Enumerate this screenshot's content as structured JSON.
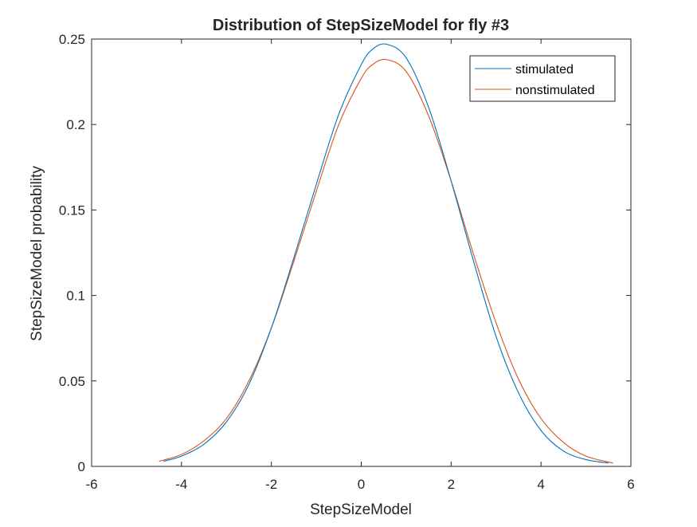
{
  "chart_data": {
    "type": "line",
    "title": "Distribution of StepSizeModel for fly #3",
    "xlabel": "StepSizeModel",
    "ylabel": "StepSizeModel probability",
    "xlim": [
      -6,
      6
    ],
    "ylim": [
      0,
      0.25
    ],
    "xticks": [
      -6,
      -4,
      -2,
      0,
      2,
      4,
      6
    ],
    "yticks": [
      0,
      0.05,
      0.1,
      0.15,
      0.2,
      0.25
    ],
    "xtick_labels": [
      "-6",
      "-4",
      "-2",
      "0",
      "2",
      "4",
      "6"
    ],
    "ytick_labels": [
      "0",
      "0.05",
      "0.1",
      "0.15",
      "0.2",
      "0.25"
    ],
    "legend_position": "top-right",
    "grid": false,
    "box": true,
    "series": [
      {
        "name": "stimulated",
        "color": "#0072bd",
        "x": [
          -4.4,
          -4.0,
          -3.5,
          -3.0,
          -2.5,
          -2.0,
          -1.5,
          -1.0,
          -0.5,
          0.0,
          0.25,
          0.56,
          1.0,
          1.5,
          2.0,
          2.5,
          3.0,
          3.5,
          4.0,
          4.5,
          5.0,
          5.5
        ],
        "y": [
          0.003,
          0.006,
          0.013,
          0.026,
          0.048,
          0.081,
          0.122,
          0.165,
          0.206,
          0.235,
          0.244,
          0.247,
          0.239,
          0.21,
          0.167,
          0.12,
          0.076,
          0.043,
          0.021,
          0.009,
          0.004,
          0.002
        ]
      },
      {
        "name": "nonstimulated",
        "color": "#d95319",
        "x": [
          -4.5,
          -4.0,
          -3.5,
          -3.0,
          -2.5,
          -2.0,
          -1.5,
          -1.0,
          -0.5,
          0.0,
          0.25,
          0.56,
          1.0,
          1.5,
          2.0,
          2.5,
          3.0,
          3.5,
          4.0,
          4.5,
          5.0,
          5.6
        ],
        "y": [
          0.003,
          0.007,
          0.015,
          0.028,
          0.05,
          0.081,
          0.12,
          0.161,
          0.2,
          0.227,
          0.235,
          0.238,
          0.231,
          0.205,
          0.167,
          0.124,
          0.084,
          0.051,
          0.028,
          0.014,
          0.006,
          0.002
        ]
      }
    ]
  }
}
